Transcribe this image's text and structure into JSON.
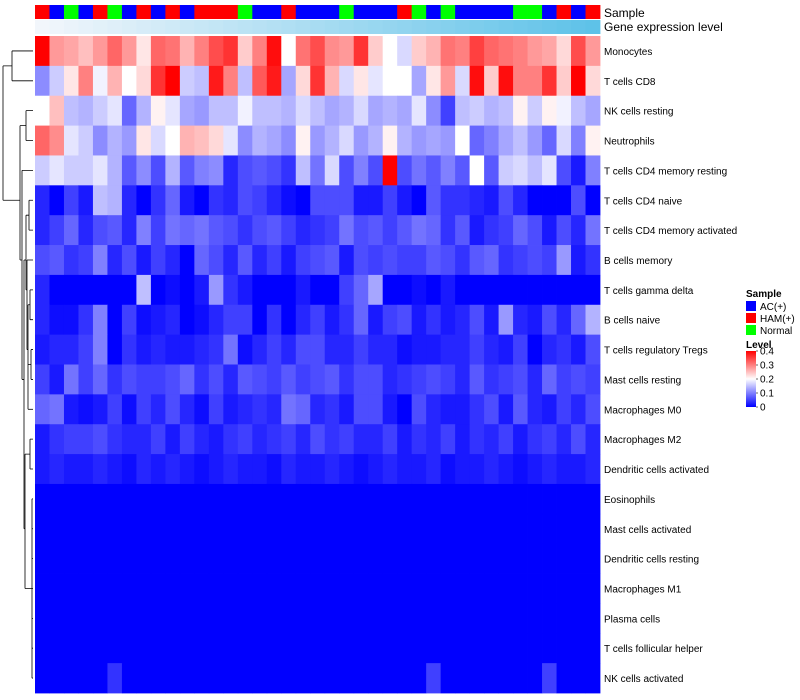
{
  "chart_data": {
    "type": "heatmap",
    "annotation_labels": {
      "sample": "Sample",
      "expression": "Gene expression level"
    },
    "sample_colors": {
      "AC(+)": "#0000ff",
      "HAM(+)": "#ff0000",
      "Normal": "#00ff00"
    },
    "expression_bar_colors": [
      "#f2f6fb",
      "#5ec2e8"
    ],
    "samples": [
      "HAM(+)",
      "AC(+)",
      "Normal",
      "AC(+)",
      "HAM(+)",
      "Normal",
      "AC(+)",
      "HAM(+)",
      "AC(+)",
      "HAM(+)",
      "AC(+)",
      "HAM(+)",
      "HAM(+)",
      "HAM(+)",
      "Normal",
      "AC(+)",
      "AC(+)",
      "HAM(+)",
      "AC(+)",
      "AC(+)",
      "AC(+)",
      "Normal",
      "AC(+)",
      "AC(+)",
      "AC(+)",
      "HAM(+)",
      "Normal",
      "AC(+)",
      "Normal",
      "AC(+)",
      "AC(+)",
      "AC(+)",
      "AC(+)",
      "Normal",
      "Normal",
      "AC(+)",
      "HAM(+)",
      "AC(+)",
      "HAM(+)"
    ],
    "rows": [
      "Monocytes",
      "T cells CD8",
      "NK cells resting",
      "Neutrophils",
      "T cells CD4 memory resting",
      "T cells CD4 naive",
      "T cells CD4 memory activated",
      "B cells memory",
      "T cells gamma delta",
      "B cells naive",
      "T cells regulatory  Tregs",
      "Mast cells resting",
      "Macrophages M0",
      "Macrophages M2",
      "Dendritic cells activated",
      "Eosinophils",
      "Mast cells activated",
      "Dendritic cells resting",
      "Macrophages M1",
      "Plasma cells",
      "T cells follicular helper",
      "NK cells activated"
    ],
    "values": [
      [
        0.4,
        0.28,
        0.27,
        0.25,
        0.28,
        0.32,
        0.28,
        0.22,
        0.32,
        0.31,
        0.26,
        0.3,
        0.34,
        0.36,
        0.24,
        0.3,
        0.39,
        0.2,
        0.31,
        0.34,
        0.29,
        0.28,
        0.36,
        0.24,
        0.2,
        0.17,
        0.24,
        0.26,
        0.31,
        0.3,
        0.35,
        0.32,
        0.31,
        0.3,
        0.28,
        0.27,
        0.23,
        0.34,
        0.28
      ],
      [
        0.11,
        0.16,
        0.22,
        0.3,
        0.19,
        0.26,
        0.2,
        0.23,
        0.36,
        0.4,
        0.16,
        0.15,
        0.38,
        0.3,
        0.15,
        0.33,
        0.38,
        0.13,
        0.23,
        0.36,
        0.26,
        0.17,
        0.22,
        0.18,
        0.2,
        0.2,
        0.13,
        0.22,
        0.28,
        0.17,
        0.39,
        0.24,
        0.39,
        0.3,
        0.3,
        0.36,
        0.24,
        0.4,
        0.23
      ],
      [
        0.2,
        0.25,
        0.15,
        0.14,
        0.16,
        0.18,
        0.08,
        0.14,
        0.21,
        0.18,
        0.13,
        0.12,
        0.15,
        0.15,
        0.19,
        0.15,
        0.15,
        0.14,
        0.17,
        0.15,
        0.13,
        0.14,
        0.17,
        0.13,
        0.14,
        0.13,
        0.18,
        0.11,
        0.05,
        0.15,
        0.16,
        0.14,
        0.15,
        0.21,
        0.16,
        0.21,
        0.19,
        0.15,
        0.13
      ],
      [
        0.32,
        0.29,
        0.18,
        0.16,
        0.11,
        0.14,
        0.12,
        0.22,
        0.17,
        0.2,
        0.26,
        0.25,
        0.23,
        0.18,
        0.11,
        0.14,
        0.13,
        0.11,
        0.21,
        0.12,
        0.14,
        0.17,
        0.12,
        0.14,
        0.21,
        0.14,
        0.12,
        0.13,
        0.12,
        0.2,
        0.08,
        0.1,
        0.13,
        0.15,
        0.12,
        0.08,
        0.17,
        0.1,
        0.21
      ],
      [
        0.16,
        0.18,
        0.16,
        0.16,
        0.18,
        0.14,
        0.07,
        0.11,
        0.06,
        0.14,
        0.07,
        0.1,
        0.11,
        0.03,
        0.06,
        0.07,
        0.06,
        0.04,
        0.15,
        0.09,
        0.17,
        0.06,
        0.1,
        0.06,
        0.4,
        0.06,
        0.09,
        0.07,
        0.1,
        0.07,
        0.2,
        0.07,
        0.16,
        0.17,
        0.15,
        0.18,
        0.06,
        0.02,
        0.1
      ],
      [
        0.03,
        0.0,
        0.05,
        0.02,
        0.15,
        0.14,
        0.03,
        0.0,
        0.04,
        0.08,
        0.02,
        0.0,
        0.04,
        0.03,
        0.06,
        0.05,
        0.03,
        0.01,
        0.0,
        0.06,
        0.06,
        0.06,
        0.02,
        0.02,
        0.05,
        0.02,
        0.0,
        0.07,
        0.04,
        0.04,
        0.03,
        0.02,
        0.06,
        0.03,
        0.0,
        0.0,
        0.0,
        0.06,
        0.0
      ],
      [
        0.03,
        0.05,
        0.08,
        0.03,
        0.06,
        0.07,
        0.03,
        0.1,
        0.05,
        0.09,
        0.08,
        0.09,
        0.07,
        0.06,
        0.04,
        0.06,
        0.07,
        0.05,
        0.03,
        0.04,
        0.05,
        0.09,
        0.06,
        0.07,
        0.05,
        0.07,
        0.09,
        0.08,
        0.04,
        0.07,
        0.02,
        0.04,
        0.05,
        0.08,
        0.06,
        0.02,
        0.06,
        0.03,
        0.09
      ],
      [
        0.06,
        0.07,
        0.04,
        0.05,
        0.1,
        0.03,
        0.06,
        0.02,
        0.05,
        0.03,
        0.0,
        0.08,
        0.06,
        0.03,
        0.07,
        0.03,
        0.05,
        0.02,
        0.05,
        0.06,
        0.07,
        0.02,
        0.06,
        0.05,
        0.06,
        0.05,
        0.05,
        0.07,
        0.06,
        0.04,
        0.07,
        0.08,
        0.04,
        0.05,
        0.06,
        0.05,
        0.12,
        0.02,
        0.04
      ],
      [
        0.03,
        0.0,
        0.0,
        0.0,
        0.0,
        0.0,
        0.0,
        0.15,
        0.0,
        0.01,
        0.0,
        0.02,
        0.12,
        0.04,
        0.02,
        0.0,
        0.0,
        0.0,
        0.02,
        0.0,
        0.0,
        0.05,
        0.08,
        0.13,
        0.0,
        0.0,
        0.01,
        0.0,
        0.02,
        0.0,
        0.0,
        0.0,
        0.0,
        0.0,
        0.0,
        0.0,
        0.0,
        0.0,
        0.0
      ],
      [
        0.03,
        0.01,
        0.01,
        0.04,
        0.1,
        0.0,
        0.05,
        0.01,
        0.02,
        0.03,
        0.0,
        0.01,
        0.03,
        0.05,
        0.05,
        0.0,
        0.04,
        0.0,
        0.03,
        0.05,
        0.02,
        0.04,
        0.08,
        0.02,
        0.05,
        0.06,
        0.02,
        0.04,
        0.02,
        0.03,
        0.06,
        0.02,
        0.12,
        0.03,
        0.02,
        0.06,
        0.03,
        0.08,
        0.14
      ],
      [
        0.02,
        0.03,
        0.03,
        0.05,
        0.1,
        0.0,
        0.04,
        0.02,
        0.03,
        0.02,
        0.02,
        0.03,
        0.04,
        0.09,
        0.01,
        0.03,
        0.05,
        0.03,
        0.06,
        0.06,
        0.03,
        0.03,
        0.05,
        0.03,
        0.03,
        0.01,
        0.02,
        0.02,
        0.03,
        0.03,
        0.05,
        0.03,
        0.02,
        0.05,
        0.0,
        0.03,
        0.04,
        0.02,
        0.06
      ],
      [
        0.05,
        0.02,
        0.09,
        0.05,
        0.08,
        0.04,
        0.06,
        0.05,
        0.05,
        0.06,
        0.08,
        0.04,
        0.06,
        0.03,
        0.07,
        0.06,
        0.05,
        0.07,
        0.05,
        0.06,
        0.07,
        0.04,
        0.06,
        0.06,
        0.03,
        0.04,
        0.05,
        0.06,
        0.05,
        0.03,
        0.07,
        0.04,
        0.05,
        0.06,
        0.03,
        0.08,
        0.05,
        0.06,
        0.05
      ],
      [
        0.08,
        0.09,
        0.02,
        0.01,
        0.02,
        0.05,
        0.01,
        0.05,
        0.03,
        0.06,
        0.03,
        0.01,
        0.05,
        0.02,
        0.03,
        0.04,
        0.03,
        0.09,
        0.08,
        0.03,
        0.04,
        0.02,
        0.06,
        0.06,
        0.02,
        0.0,
        0.06,
        0.03,
        0.02,
        0.02,
        0.04,
        0.06,
        0.02,
        0.07,
        0.03,
        0.02,
        0.05,
        0.03,
        0.06
      ],
      [
        0.02,
        0.04,
        0.05,
        0.05,
        0.06,
        0.04,
        0.03,
        0.03,
        0.05,
        0.02,
        0.05,
        0.03,
        0.02,
        0.04,
        0.05,
        0.03,
        0.04,
        0.05,
        0.03,
        0.06,
        0.04,
        0.05,
        0.03,
        0.03,
        0.05,
        0.02,
        0.04,
        0.03,
        0.05,
        0.02,
        0.04,
        0.03,
        0.05,
        0.02,
        0.04,
        0.05,
        0.03,
        0.06,
        0.03
      ],
      [
        0.02,
        0.03,
        0.02,
        0.02,
        0.03,
        0.02,
        0.01,
        0.03,
        0.02,
        0.03,
        0.02,
        0.01,
        0.02,
        0.03,
        0.02,
        0.02,
        0.01,
        0.03,
        0.02,
        0.02,
        0.03,
        0.02,
        0.01,
        0.02,
        0.03,
        0.02,
        0.02,
        0.03,
        0.01,
        0.02,
        0.02,
        0.03,
        0.02,
        0.01,
        0.02,
        0.03,
        0.02,
        0.02,
        0.03
      ],
      [
        0,
        0,
        0,
        0,
        0,
        0,
        0,
        0,
        0,
        0,
        0,
        0,
        0,
        0,
        0,
        0,
        0,
        0,
        0,
        0,
        0,
        0,
        0,
        0,
        0,
        0,
        0,
        0,
        0,
        0,
        0,
        0,
        0,
        0,
        0,
        0,
        0,
        0,
        0
      ],
      [
        0,
        0,
        0,
        0,
        0,
        0,
        0,
        0,
        0,
        0,
        0,
        0,
        0,
        0,
        0,
        0,
        0,
        0,
        0,
        0,
        0,
        0,
        0,
        0,
        0,
        0,
        0,
        0,
        0,
        0,
        0,
        0,
        0,
        0,
        0,
        0,
        0,
        0,
        0
      ],
      [
        0,
        0,
        0,
        0,
        0,
        0,
        0,
        0,
        0,
        0,
        0,
        0,
        0,
        0,
        0,
        0,
        0,
        0,
        0,
        0,
        0,
        0,
        0,
        0,
        0,
        0,
        0,
        0,
        0,
        0,
        0,
        0,
        0,
        0,
        0,
        0,
        0,
        0,
        0
      ],
      [
        0,
        0,
        0,
        0,
        0,
        0,
        0,
        0,
        0,
        0,
        0,
        0,
        0,
        0,
        0,
        0,
        0,
        0,
        0,
        0,
        0,
        0,
        0,
        0,
        0,
        0,
        0,
        0,
        0,
        0,
        0,
        0,
        0,
        0,
        0,
        0,
        0,
        0,
        0
      ],
      [
        0,
        0,
        0,
        0,
        0,
        0,
        0,
        0,
        0,
        0,
        0,
        0,
        0,
        0,
        0,
        0,
        0,
        0,
        0,
        0,
        0,
        0,
        0,
        0,
        0,
        0,
        0,
        0,
        0,
        0,
        0,
        0,
        0,
        0,
        0,
        0,
        0,
        0,
        0
      ],
      [
        0,
        0,
        0,
        0,
        0,
        0,
        0,
        0,
        0,
        0,
        0,
        0,
        0,
        0,
        0,
        0,
        0,
        0,
        0,
        0,
        0,
        0,
        0,
        0,
        0,
        0,
        0,
        0,
        0,
        0,
        0,
        0,
        0,
        0,
        0,
        0,
        0,
        0,
        0
      ],
      [
        0,
        0,
        0,
        0,
        0,
        0.04,
        0,
        0,
        0,
        0,
        0,
        0,
        0,
        0,
        0,
        0,
        0,
        0,
        0,
        0,
        0,
        0,
        0,
        0,
        0,
        0,
        0,
        0.05,
        0,
        0,
        0,
        0,
        0,
        0,
        0,
        0.05,
        0,
        0,
        0
      ]
    ],
    "legend": {
      "sample_title": "Sample",
      "sample_entries": [
        "AC(+)",
        "HAM(+)",
        "Normal"
      ],
      "level_title": "Level",
      "level_ticks": [
        "0.4",
        "0.3",
        "0.2",
        "0.1",
        "0"
      ],
      "level_tick_values": [
        0.4,
        0.3,
        0.2,
        0.1,
        0.0
      ],
      "level_range": [
        0,
        0.4
      ],
      "level_colors": {
        "low": "#0000ff",
        "mid": "#ffffff",
        "high": "#ff0000"
      }
    },
    "row_dendrogram": true,
    "placement": "legend right of heatmap"
  }
}
